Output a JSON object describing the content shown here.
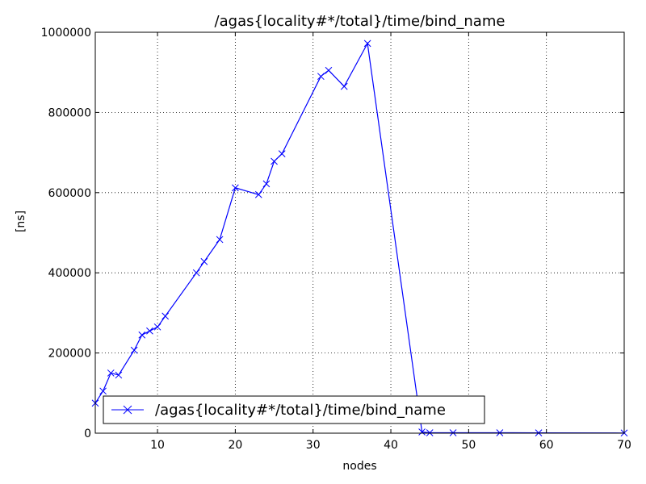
{
  "chart_data": {
    "type": "line",
    "title": "/agas{locality#*/total}/time/bind_name",
    "xlabel": "nodes",
    "ylabel": "[ns]",
    "xlim": [
      2,
      70
    ],
    "ylim": [
      0,
      1000000
    ],
    "xticks": [
      10,
      20,
      30,
      40,
      50,
      60,
      70
    ],
    "yticks": [
      0,
      200000,
      400000,
      600000,
      800000,
      1000000
    ],
    "grid": true,
    "legend_position": "lower-left",
    "series": [
      {
        "name": "/agas{locality#*/total}/time/bind_name",
        "color": "#0000ff",
        "marker": "x",
        "x": [
          2,
          3,
          4,
          5,
          7,
          8,
          9,
          10,
          11,
          15,
          16,
          18,
          20,
          23,
          24,
          25,
          26,
          31,
          32,
          34,
          37,
          44,
          45,
          48,
          54,
          59,
          70
        ],
        "y": [
          75000,
          105000,
          150000,
          145000,
          207000,
          245000,
          255000,
          265000,
          292000,
          400000,
          428000,
          483000,
          612000,
          595000,
          622000,
          678000,
          697000,
          890000,
          905000,
          865000,
          972000,
          3000,
          1000,
          1000,
          1000,
          800,
          500
        ]
      }
    ]
  }
}
